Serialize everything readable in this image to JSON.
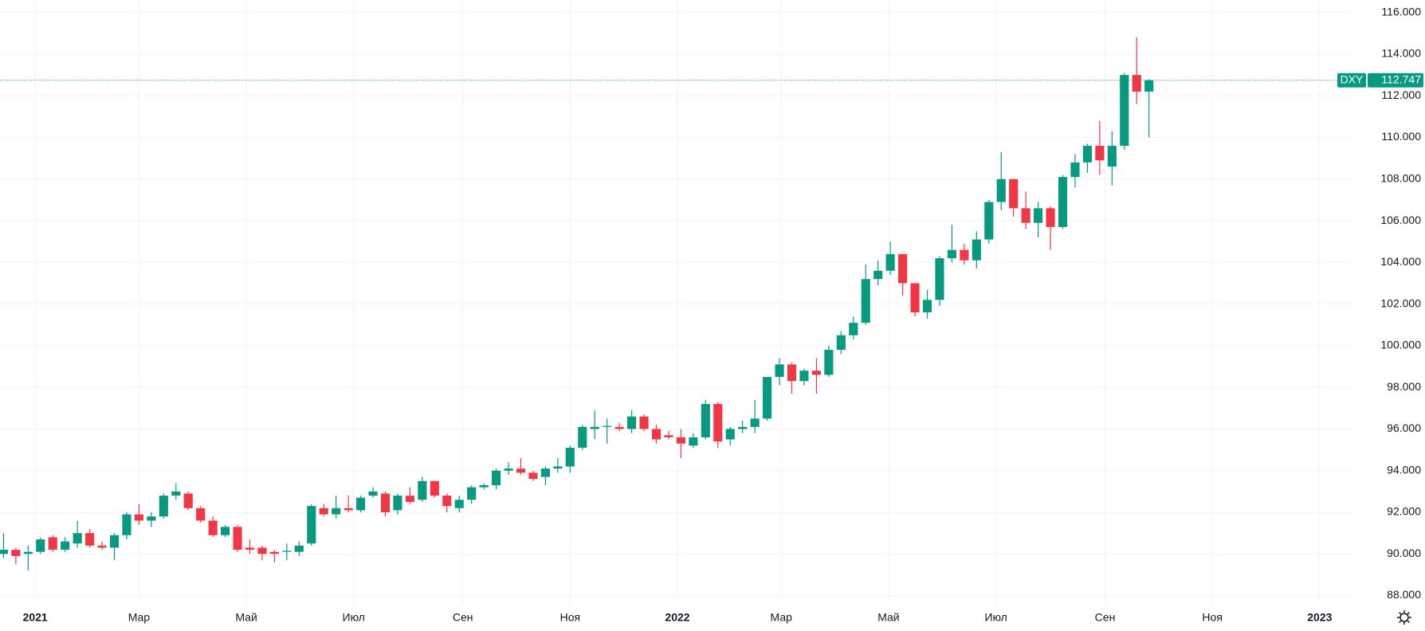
{
  "chart_data": {
    "type": "candlestick",
    "symbol": "DXY",
    "up_color": "#089981",
    "down_color": "#f23645",
    "grid": true,
    "x": [
      "2020-12-14",
      "2020-12-21",
      "2020-12-28",
      "2021-01-04",
      "2021-01-11",
      "2021-01-18",
      "2021-01-25",
      "2021-02-01",
      "2021-02-08",
      "2021-02-15",
      "2021-02-22",
      "2021-03-01",
      "2021-03-08",
      "2021-03-15",
      "2021-03-22",
      "2021-03-29",
      "2021-04-05",
      "2021-04-12",
      "2021-04-19",
      "2021-04-26",
      "2021-05-03",
      "2021-05-10",
      "2021-05-17",
      "2021-05-24",
      "2021-05-31",
      "2021-06-07",
      "2021-06-14",
      "2021-06-21",
      "2021-06-28",
      "2021-07-05",
      "2021-07-12",
      "2021-07-19",
      "2021-07-26",
      "2021-08-02",
      "2021-08-09",
      "2021-08-16",
      "2021-08-23",
      "2021-08-30",
      "2021-09-06",
      "2021-09-13",
      "2021-09-20",
      "2021-09-27",
      "2021-10-04",
      "2021-10-11",
      "2021-10-18",
      "2021-10-25",
      "2021-11-01",
      "2021-11-08",
      "2021-11-15",
      "2021-11-22",
      "2021-11-29",
      "2021-12-06",
      "2021-12-13",
      "2021-12-20",
      "2021-12-27",
      "2022-01-03",
      "2022-01-10",
      "2022-01-17",
      "2022-01-24",
      "2022-01-31",
      "2022-02-07",
      "2022-02-14",
      "2022-02-21",
      "2022-02-28",
      "2022-03-07",
      "2022-03-14",
      "2022-03-21",
      "2022-03-28",
      "2022-04-04",
      "2022-04-11",
      "2022-04-18",
      "2022-04-25",
      "2022-05-02",
      "2022-05-09",
      "2022-05-16",
      "2022-05-23",
      "2022-05-30",
      "2022-06-06",
      "2022-06-13",
      "2022-06-20",
      "2022-06-27",
      "2022-07-04",
      "2022-07-11",
      "2022-07-18",
      "2022-07-25",
      "2022-08-01",
      "2022-08-08",
      "2022-08-15",
      "2022-08-22",
      "2022-08-29",
      "2022-09-05",
      "2022-09-12",
      "2022-09-19",
      "2022-09-26"
    ],
    "open": [
      90.0,
      90.2,
      90.0,
      90.1,
      90.8,
      90.2,
      90.5,
      91.0,
      90.4,
      90.3,
      90.9,
      91.9,
      91.6,
      91.8,
      92.8,
      92.9,
      92.2,
      91.6,
      90.9,
      91.3,
      90.3,
      90.3,
      90.1,
      90.1,
      90.1,
      90.5,
      92.2,
      91.9,
      92.2,
      92.1,
      92.8,
      92.9,
      92.1,
      92.8,
      92.6,
      93.5,
      92.8,
      92.2,
      92.6,
      93.2,
      93.3,
      94.0,
      94.1,
      93.9,
      93.7,
      94.1,
      94.2,
      95.1,
      96.0,
      96.1,
      96.1,
      96.0,
      96.6,
      96.0,
      95.7,
      95.6,
      95.2,
      95.6,
      97.2,
      95.5,
      96.0,
      96.1,
      96.5,
      98.5,
      99.1,
      98.3,
      98.8,
      98.6,
      99.8,
      100.5,
      101.1,
      103.2,
      103.6,
      104.4,
      103.0,
      101.6,
      102.2,
      104.2,
      104.6,
      104.1,
      105.1,
      106.9,
      108.0,
      106.6,
      105.9,
      106.6,
      105.7,
      108.1,
      108.8,
      109.6,
      108.6,
      109.6,
      113.0,
      112.2
    ],
    "high": [
      91.0,
      90.3,
      90.4,
      90.8,
      90.9,
      90.8,
      91.6,
      91.2,
      90.6,
      91.0,
      92.0,
      92.4,
      92.0,
      92.9,
      93.4,
      93.0,
      92.3,
      91.8,
      91.4,
      91.4,
      90.7,
      90.4,
      90.2,
      90.5,
      90.6,
      92.4,
      92.4,
      92.8,
      92.8,
      92.8,
      93.2,
      93.0,
      92.9,
      93.2,
      93.7,
      93.5,
      92.9,
      92.8,
      93.3,
      93.4,
      94.1,
      94.4,
      94.6,
      94.0,
      94.2,
      94.6,
      95.2,
      96.2,
      96.9,
      96.5,
      96.3,
      96.9,
      96.7,
      96.2,
      95.9,
      96.0,
      95.8,
      97.4,
      97.3,
      96.1,
      96.4,
      97.4,
      98.5,
      99.4,
      99.2,
      98.9,
      99.4,
      100.0,
      100.7,
      101.4,
      103.9,
      104.1,
      105.0,
      104.4,
      103.0,
      102.7,
      104.3,
      105.8,
      104.9,
      105.5,
      107.0,
      109.3,
      108.0,
      107.4,
      106.9,
      106.7,
      108.2,
      109.2,
      109.7,
      110.8,
      110.3,
      113.1,
      114.8,
      112.8
    ],
    "low": [
      89.8,
      89.5,
      89.2,
      90.0,
      90.1,
      90.1,
      90.3,
      90.3,
      90.2,
      89.7,
      90.7,
      91.4,
      91.3,
      91.7,
      92.6,
      92.1,
      91.5,
      90.8,
      90.8,
      90.1,
      90.0,
      89.7,
      89.6,
      89.7,
      89.9,
      90.4,
      91.8,
      91.7,
      92.0,
      92.0,
      92.7,
      91.8,
      91.9,
      92.4,
      92.5,
      92.7,
      92.0,
      92.0,
      92.4,
      93.1,
      93.1,
      93.8,
      93.8,
      93.5,
      93.3,
      93.9,
      93.9,
      95.0,
      95.5,
      95.3,
      95.9,
      95.8,
      95.9,
      95.3,
      95.5,
      94.6,
      95.1,
      95.5,
      95.1,
      95.2,
      95.8,
      95.8,
      96.4,
      98.1,
      97.7,
      98.1,
      97.7,
      98.5,
      99.6,
      100.3,
      101.0,
      102.9,
      103.4,
      102.4,
      101.4,
      101.3,
      101.9,
      104.0,
      103.9,
      103.7,
      104.9,
      106.5,
      106.2,
      105.6,
      105.2,
      104.6,
      105.6,
      107.6,
      108.3,
      108.2,
      107.7,
      109.4,
      111.6,
      110.0
    ],
    "close": [
      90.2,
      89.9,
      90.1,
      90.7,
      90.2,
      90.6,
      91.0,
      90.4,
      90.3,
      90.9,
      91.9,
      91.6,
      91.8,
      92.8,
      93.0,
      92.2,
      91.6,
      90.9,
      91.3,
      90.2,
      90.2,
      90.0,
      90.0,
      90.15,
      90.4,
      92.3,
      91.9,
      92.2,
      92.1,
      92.7,
      93.0,
      92.0,
      92.8,
      92.5,
      93.5,
      92.8,
      92.3,
      92.6,
      93.2,
      93.3,
      94.0,
      94.1,
      93.9,
      93.6,
      94.1,
      94.2,
      95.1,
      96.1,
      96.1,
      96.15,
      96.0,
      96.6,
      96.0,
      95.5,
      95.6,
      95.3,
      95.6,
      97.2,
      95.4,
      96.0,
      96.1,
      96.5,
      98.5,
      99.1,
      98.3,
      98.8,
      98.6,
      99.8,
      100.5,
      101.1,
      103.2,
      103.6,
      104.4,
      103.0,
      101.6,
      102.2,
      104.2,
      104.6,
      104.1,
      105.1,
      106.9,
      108.0,
      106.6,
      105.9,
      106.6,
      105.7,
      108.1,
      108.8,
      109.6,
      108.9,
      109.6,
      113.0,
      112.2,
      112.747
    ],
    "last_value": 112.747,
    "xlim": [
      "2020-12-12",
      "2023-01-21"
    ],
    "xticks": [
      {
        "value": "2021-01-01",
        "label": "2021"
      },
      {
        "value": "2021-03-01",
        "label": "Мар"
      },
      {
        "value": "2021-05-01",
        "label": "Май"
      },
      {
        "value": "2021-07-01",
        "label": "Июл"
      },
      {
        "value": "2021-09-01",
        "label": "Сен"
      },
      {
        "value": "2021-11-01",
        "label": "Ноя"
      },
      {
        "value": "2022-01-01",
        "label": "2022"
      },
      {
        "value": "2022-03-01",
        "label": "Мар"
      },
      {
        "value": "2022-05-01",
        "label": "Май"
      },
      {
        "value": "2022-07-01",
        "label": "Июл"
      },
      {
        "value": "2022-09-01",
        "label": "Сен"
      },
      {
        "value": "2022-11-01",
        "label": "Ноя"
      },
      {
        "value": "2023-01-01",
        "label": "2023"
      }
    ],
    "ylim": [
      87.6,
      116.6
    ],
    "yticks": [
      {
        "value": 88,
        "label": "88.000"
      },
      {
        "value": 90,
        "label": "90.000"
      },
      {
        "value": 92,
        "label": "92.000"
      },
      {
        "value": 94,
        "label": "94.000"
      },
      {
        "value": 96,
        "label": "96.000"
      },
      {
        "value": 98,
        "label": "98.000"
      },
      {
        "value": 100,
        "label": "100.000"
      },
      {
        "value": 102,
        "label": "102.000"
      },
      {
        "value": 104,
        "label": "104.000"
      },
      {
        "value": 106,
        "label": "106.000"
      },
      {
        "value": 108,
        "label": "108.000"
      },
      {
        "value": 110,
        "label": "110.000"
      },
      {
        "value": 112,
        "label": "112.000"
      },
      {
        "value": 114,
        "label": "114.000"
      },
      {
        "value": 116,
        "label": "116.000"
      }
    ]
  }
}
